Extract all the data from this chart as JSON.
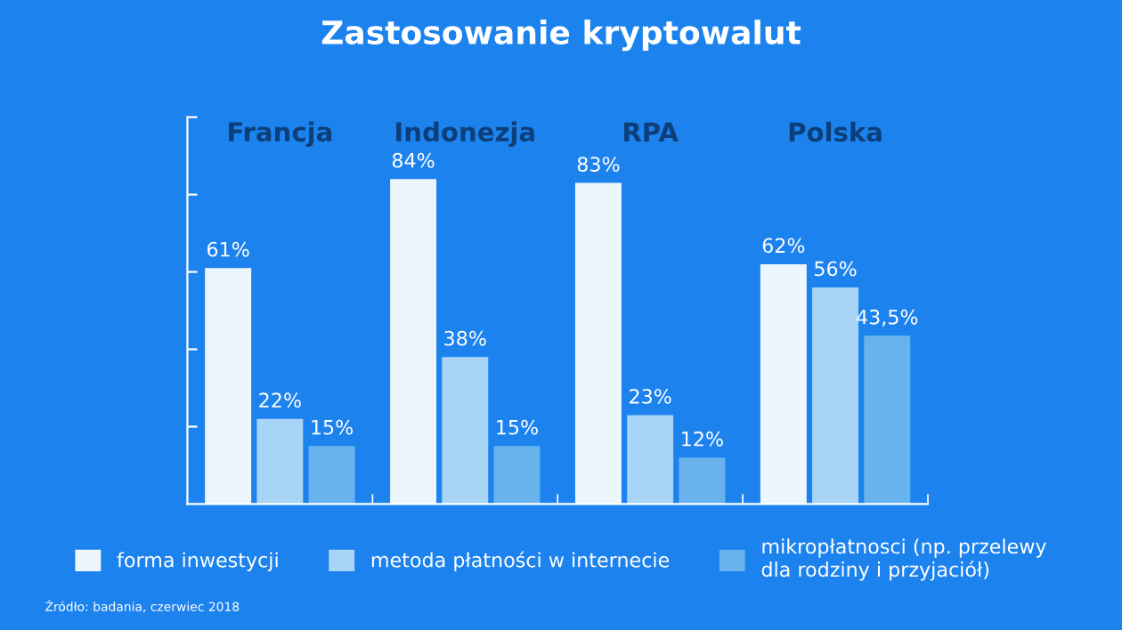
{
  "chart_data": {
    "type": "bar",
    "title": "Zastosowanie kryptowalut",
    "categories": [
      "Francja",
      "Indonezja",
      "RPA",
      "Polska"
    ],
    "series": [
      {
        "name": "forma inwestycji",
        "color": "#eef6fd",
        "values": [
          61,
          84,
          83,
          62
        ],
        "value_labels": [
          "61%",
          "84%",
          "83%",
          "62%"
        ]
      },
      {
        "name": "metoda płatności w internecie",
        "color": "#a8d4f5",
        "values": [
          22,
          38,
          23,
          56
        ],
        "value_labels": [
          "22%",
          "38%",
          "23%",
          "56%"
        ]
      },
      {
        "name": "mikropłatnosci (np. przelewy\ndla rodziny i przyjaciół)",
        "color": "#68b3ee",
        "values": [
          15,
          15,
          12,
          43.5
        ],
        "value_labels": [
          "15%",
          "15%",
          "12%",
          "43,5%"
        ]
      }
    ],
    "ylim": [
      0,
      100
    ],
    "yticks": [
      {
        "value": 20,
        "label": null
      },
      {
        "value": 40,
        "label": null
      },
      {
        "value": 60,
        "label": null
      },
      {
        "value": 80,
        "label": null
      },
      {
        "value": 100,
        "label": null
      }
    ],
    "tick_labels": "x",
    "grid": false,
    "legend": "bottom",
    "annotations": [
      "Źródło: badania, czerwiec 2018"
    ]
  }
}
